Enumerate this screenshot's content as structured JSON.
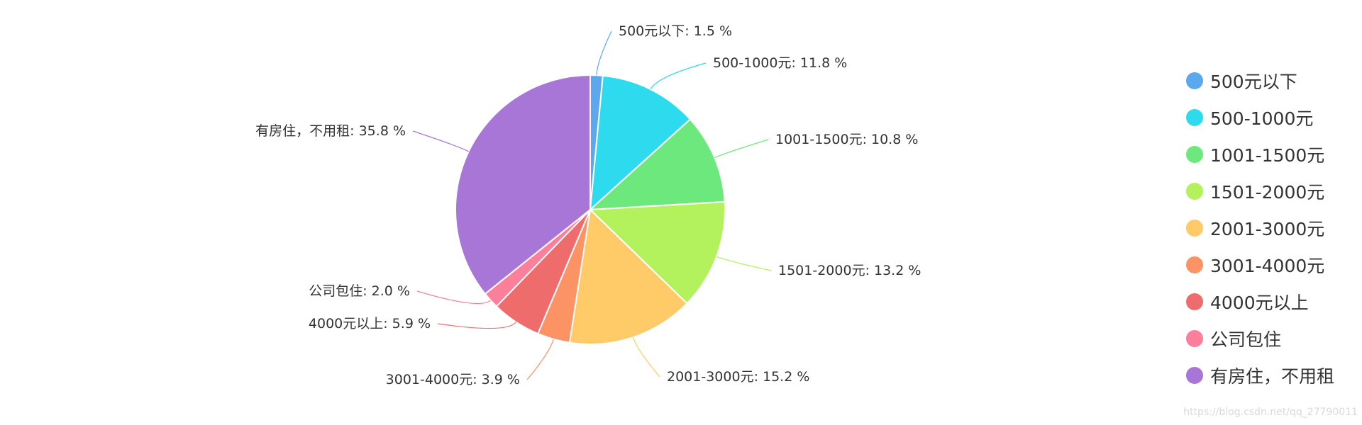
{
  "chart_data": {
    "type": "pie",
    "label_suffix": " %",
    "start_angle_deg": 0,
    "slices": [
      {
        "name": "500元以下",
        "value": 1.5,
        "color": "#5ba8ee"
      },
      {
        "name": "500-1000元",
        "value": 11.8,
        "color": "#2edaed"
      },
      {
        "name": "1001-1500元",
        "value": 10.8,
        "color": "#6de87c"
      },
      {
        "name": "1501-2000元",
        "value": 13.2,
        "color": "#b3f25c"
      },
      {
        "name": "2001-3000元",
        "value": 15.2,
        "color": "#ffca67"
      },
      {
        "name": "3001-4000元",
        "value": 3.9,
        "color": "#fb9364"
      },
      {
        "name": "4000元以上",
        "value": 5.9,
        "color": "#ef6c6c"
      },
      {
        "name": "公司包住",
        "value": 2.0,
        "color": "#fc7f9c"
      },
      {
        "name": "有房住，不用租",
        "value": 35.8,
        "color": "#a876d6"
      }
    ],
    "legend": {
      "position": "right"
    }
  },
  "watermark": "https://blog.csdn.net/qq_27790011"
}
